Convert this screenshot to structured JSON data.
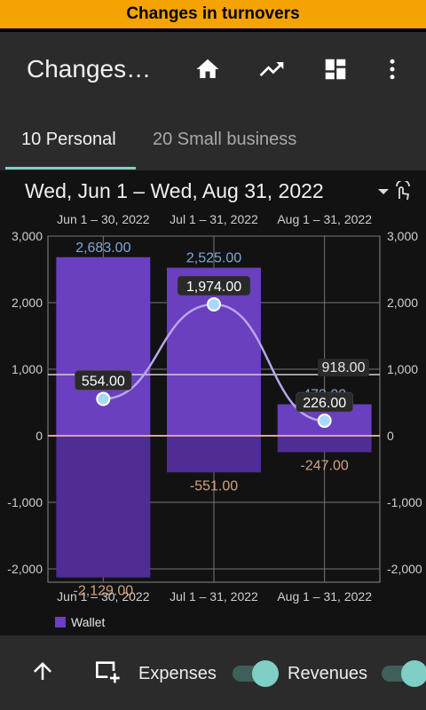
{
  "banner": {
    "text": "Changes in turnovers"
  },
  "appbar": {
    "title": "Changes…",
    "icons": [
      "home-icon",
      "trending-up-icon",
      "dashboard-icon",
      "more-vert-icon"
    ]
  },
  "tabs": [
    {
      "label": "10 Personal",
      "active": true
    },
    {
      "label": "20 Small business",
      "active": false
    }
  ],
  "date_range": "Wed, Jun 1 – Wed, Aug 31, 2022",
  "colors": {
    "bar": "#6a3fc0",
    "bar_negative": "#4f2d94",
    "line": "#b7a6e8",
    "point": "#a9d8ff",
    "revenue_label": "#7fa8d9",
    "expense_label": "#d6a27d",
    "accent": "#7fcfc6"
  },
  "chart_data": {
    "type": "bar",
    "categories": [
      "Jun 1 – 30, 2022",
      "Jul 1 – 31, 2022",
      "Aug 1 – 31, 2022"
    ],
    "series": [
      {
        "name": "Revenues",
        "values": [
          2683.0,
          2525.0,
          473.0
        ]
      },
      {
        "name": "Expenses",
        "values": [
          -2129.0,
          -551.0,
          -247.0
        ]
      },
      {
        "name": "Wallet",
        "values": [
          554.0,
          1974.0,
          226.0
        ]
      }
    ],
    "revenue_labels": [
      "2,683.00",
      "2,525.00",
      "473.00"
    ],
    "expense_labels": [
      "-2,129.00",
      "-551.00",
      "-247.00"
    ],
    "wallet_labels": [
      "554.00",
      "1,974.00",
      "226.00"
    ],
    "reference_label": "918.00",
    "reference_value": 918,
    "ylim": [
      -2200,
      3000
    ],
    "yticks": [
      3000,
      2000,
      1000,
      0,
      -1000,
      -2000
    ],
    "ytick_labels": [
      "3,000",
      "2,000",
      "1,000",
      "0",
      "-1,000",
      "-2,000"
    ],
    "legend": [
      "Wallet"
    ],
    "grid": true
  },
  "bottom": {
    "expenses_label": "Expenses",
    "revenues_label": "Revenues",
    "expenses_on": true,
    "revenues_on": true
  }
}
